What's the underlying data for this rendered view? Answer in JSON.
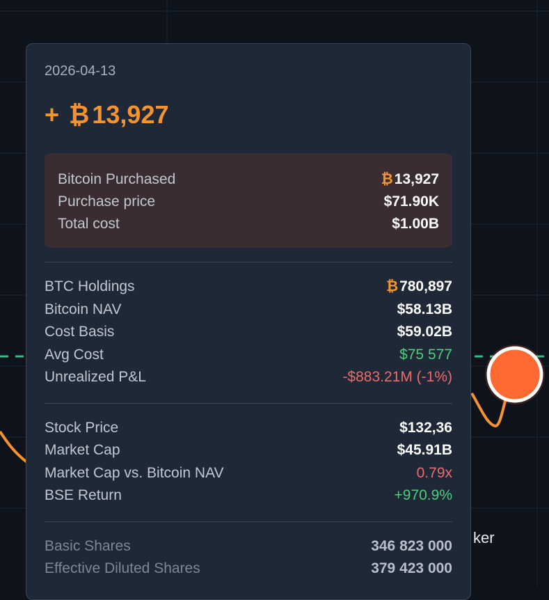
{
  "background": {
    "partial_text": "ker",
    "colors": {
      "line": "#f7932e",
      "dashed": "#2fbf8a",
      "marker": "#ff6a33"
    }
  },
  "tooltip": {
    "date": "2026-04-13",
    "headline": {
      "sign": "+",
      "currency_symbol": "₿",
      "amount": "13,927"
    },
    "purchase": [
      {
        "label": "Bitcoin Purchased",
        "symbol": "₿",
        "value": "13,927"
      },
      {
        "label": "Purchase price",
        "value": "$71.90K"
      },
      {
        "label": "Total cost",
        "value": "$1.00B"
      }
    ],
    "holdings": [
      {
        "label": "BTC Holdings",
        "symbol": "₿",
        "value": "780,897"
      },
      {
        "label": "Bitcoin NAV",
        "value": "$58.13B"
      },
      {
        "label": "Cost Basis",
        "value": "$59.02B"
      },
      {
        "label": "Avg Cost",
        "value": "$75 577",
        "tone": "green"
      },
      {
        "label": "Unrealized P&L",
        "value": "-$883.21M (-1%)",
        "tone": "red"
      }
    ],
    "stock": [
      {
        "label": "Stock Price",
        "value": "$132,36"
      },
      {
        "label": "Market Cap",
        "value": "$45.91B"
      },
      {
        "label": "Market Cap vs. Bitcoin NAV",
        "value": "0.79x",
        "tone": "red"
      },
      {
        "label": "BSE Return",
        "value": "+970.9%",
        "tone": "green"
      }
    ],
    "shares": [
      {
        "label": "Basic Shares",
        "value": "346 823 000"
      },
      {
        "label": "Effective Diluted Shares",
        "value": "379 423 000"
      }
    ]
  }
}
